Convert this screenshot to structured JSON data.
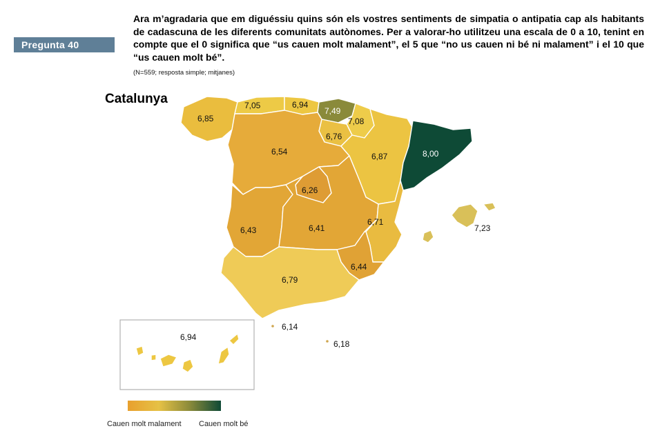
{
  "header": {
    "badge": "Pregunta  40",
    "question": "Ara m’agradaria que em diguéssiu quins són els vostres sentiments de simpatia o antipatia cap als habitants de cadascuna de les diferents comunitats autònomes. Per a valorar-ho utilitzeu una escala de 0 a 10, tenint en compte que el 0 significa que “us cauen molt malament”, el 5 que “no us cauen ni bé ni malament” i el 10 que “us cauen molt bé”.",
    "note": "(N=559; resposta simple; mitjanes)"
  },
  "map": {
    "title": "Catalunya",
    "regions": [
      {
        "value": "6,85",
        "color": "#eabd3e"
      },
      {
        "value": "7,05",
        "color": "#edca46"
      },
      {
        "value": "6,94",
        "color": "#edc742"
      },
      {
        "value": "7,49",
        "color": "#8a8a3a"
      },
      {
        "value": "7,08",
        "color": "#eecc4a"
      },
      {
        "value": "6,76",
        "color": "#eac043"
      },
      {
        "value": "6,54",
        "color": "#e6ab3a"
      },
      {
        "value": "6,87",
        "color": "#ecc442"
      },
      {
        "value": "8,00",
        "color": "#0e4a36"
      },
      {
        "value": "6,26",
        "color": "#de9c34"
      },
      {
        "value": "6,43",
        "color": "#e2a636"
      },
      {
        "value": "6,41",
        "color": "#e2a636"
      },
      {
        "value": "6,71",
        "color": "#e9bb40"
      },
      {
        "value": "6,44",
        "color": "#e0a235"
      },
      {
        "value": "6,79",
        "color": "#efcb57"
      },
      {
        "value": "7,23",
        "color": "#d9c059"
      },
      {
        "value": "6,14",
        "color": "#cfa64f"
      },
      {
        "value": "6,18",
        "color": "#cfa64f"
      },
      {
        "value": "6,94",
        "color": "#edc742"
      }
    ]
  },
  "legend": {
    "low_label": "Cauen molt malament",
    "high_label": "Cauen molt bé",
    "gradient_colors": [
      "#e8a02e",
      "#e6c145",
      "#8a8a3a",
      "#0e4a36"
    ]
  }
}
